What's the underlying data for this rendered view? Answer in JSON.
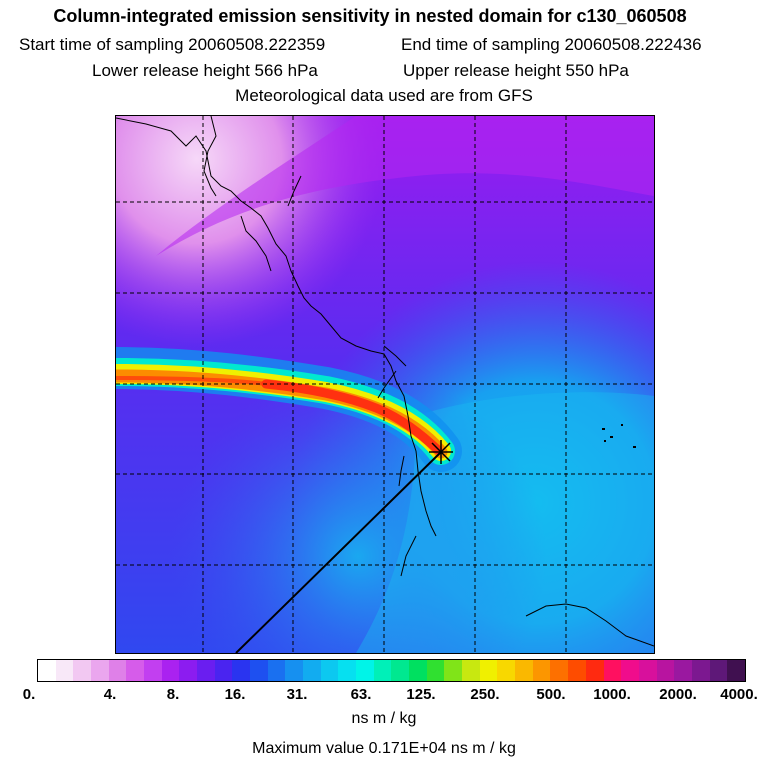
{
  "title": "Column-integrated emission sensitivity in nested domain for c130_060508",
  "sampling": {
    "start": "Start time of sampling 20060508.222359",
    "end": "End time of sampling 20060508.222436"
  },
  "release": {
    "lower": "Lower release height  566 hPa",
    "upper": "Upper release height  550 hPa"
  },
  "met_note": "Meteorological data used are from GFS",
  "colorbar": {
    "colors": [
      "#ffffff",
      "#f8e8f8",
      "#f2c8f2",
      "#eaa6ee",
      "#df80e8",
      "#d65cea",
      "#c23ff0",
      "#aa22f0",
      "#8c1cf0",
      "#6a1ef0",
      "#4a24f0",
      "#2a34f0",
      "#1e50f0",
      "#1a70f0",
      "#1690f0",
      "#12acf0",
      "#0cc8f0",
      "#06e0f0",
      "#00f4e8",
      "#00f0b8",
      "#00e890",
      "#00e060",
      "#30e030",
      "#80e418",
      "#c8e810",
      "#f0f000",
      "#f8d800",
      "#fab800",
      "#fc9600",
      "#fd7000",
      "#fe4c00",
      "#ff2a10",
      "#ff1060",
      "#f00c8c",
      "#d8109c",
      "#b814a0",
      "#9a18a0",
      "#7c1890",
      "#5e1878",
      "#401050"
    ],
    "labels": [
      "0.",
      "4.",
      "8.",
      "16.",
      "31.",
      "63.",
      "125.",
      "250.",
      "500.",
      "1000.",
      "2000.",
      "4000."
    ],
    "unit": "ns m / kg"
  },
  "max_value": "Maximum value  0.171E+04 ns m / kg"
}
